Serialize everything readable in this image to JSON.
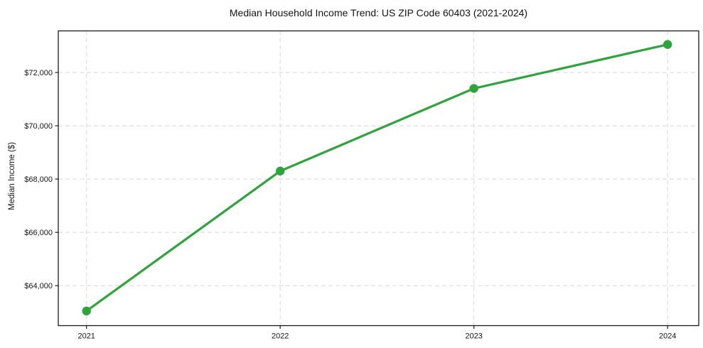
{
  "figure": {
    "title": "Median Household Income Trend: US ZIP Code 60403 (2021-2024)",
    "ylabel": "Median Income ($)"
  },
  "chart_data": {
    "type": "line",
    "title": "Median Household Income Trend: US ZIP Code 60403 (2021-2024)",
    "xlabel": "",
    "ylabel": "Median Income ($)",
    "x": [
      2021,
      2022,
      2023,
      2024
    ],
    "x_tick_labels": [
      "2021",
      "2022",
      "2023",
      "2024"
    ],
    "values": [
      63050,
      68300,
      71400,
      73050
    ],
    "y_ticks": [
      64000,
      66000,
      68000,
      70000,
      72000
    ],
    "y_tick_labels": [
      "$64,000",
      "$66,000",
      "$68,000",
      "$70,000",
      "$72,000"
    ],
    "ylim": [
      62500,
      73560
    ],
    "grid": true,
    "grid_style": "dashed",
    "legend": false,
    "marker": "circle"
  },
  "colors": {
    "line": "#2fa33c",
    "grid": "#d8d8d8",
    "spine": "#1a1a1a",
    "text": "#141414",
    "background": "#ffffff"
  }
}
